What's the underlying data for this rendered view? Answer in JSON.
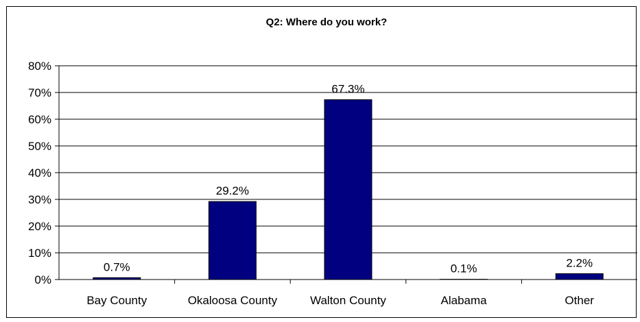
{
  "chart_data": {
    "type": "bar",
    "title": "Q2:  Where do you work?",
    "categories": [
      "Bay County",
      "Okaloosa County",
      "Walton County",
      "Alabama",
      "Other"
    ],
    "values": [
      0.7,
      29.2,
      67.3,
      0.1,
      2.2
    ],
    "data_labels": [
      "0.7%",
      "29.2%",
      "67.3%",
      "0.1%",
      "2.2%"
    ],
    "ylim": [
      0,
      80
    ],
    "yticks": [
      0,
      10,
      20,
      30,
      40,
      50,
      60,
      70,
      80
    ],
    "ytick_labels": [
      "0%",
      "10%",
      "20%",
      "30%",
      "40%",
      "50%",
      "60%",
      "70%",
      "80%"
    ],
    "xlabel": "",
    "ylabel": "",
    "grid": true,
    "legend": "none",
    "colors": {
      "bar": "#000080",
      "bar_border": "#000000",
      "grid": "#000000"
    }
  }
}
